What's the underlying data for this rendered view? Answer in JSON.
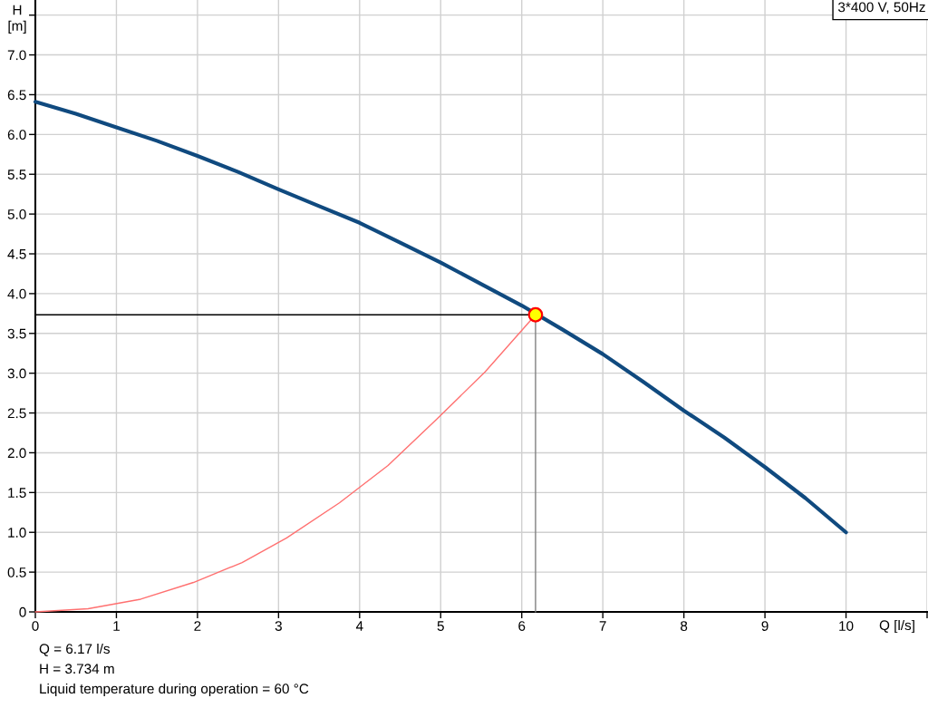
{
  "chart_data": {
    "type": "line",
    "xlabel": "Q [l/s]",
    "ylabel": "H [m]",
    "xlim": [
      0,
      11
    ],
    "ylim": [
      0,
      7.69
    ],
    "xticks": [
      0,
      1,
      2,
      3,
      4,
      5,
      6,
      7,
      8,
      9,
      10,
      {
        "value": 11,
        "label": null
      }
    ],
    "yticks": [
      0,
      0.5,
      {
        "value": 1,
        "label": "1.0"
      },
      1.5,
      {
        "value": 2,
        "label": "2.0"
      },
      2.5,
      {
        "value": 3,
        "label": "3.0"
      },
      3.5,
      {
        "value": 4,
        "label": "4.0"
      },
      4.5,
      {
        "value": 5,
        "label": "5.0"
      },
      5.5,
      {
        "value": 6,
        "label": "6.0"
      },
      6.5,
      {
        "value": 7,
        "label": "7.0"
      },
      {
        "value": 7.5,
        "label": null
      }
    ],
    "grid": true,
    "legend": false,
    "series": [
      {
        "color": "#104a7f",
        "x": [
          0,
          0.5,
          1,
          1.5,
          2,
          2.5,
          3,
          3.5,
          4,
          4.5,
          5,
          5.5,
          6,
          6.5,
          7,
          7.5,
          8,
          8.5,
          9,
          9.5,
          10
        ],
        "values": [
          6.41,
          6.26,
          6.09,
          5.92,
          5.73,
          5.53,
          5.31,
          5.1,
          4.89,
          4.64,
          4.39,
          4.12,
          3.85,
          3.55,
          3.24,
          2.89,
          2.53,
          2.19,
          1.82,
          1.43,
          1.0
        ]
      },
      {
        "color": "#ff7070",
        "x": [
          0,
          0.65,
          1.3,
          1.95,
          2.55,
          3.1,
          3.75,
          4.35,
          4.95,
          5.55,
          6.17
        ],
        "values": [
          0,
          0.04,
          0.16,
          0.37,
          0.62,
          0.93,
          1.37,
          1.84,
          2.42,
          3.02,
          3.734
        ]
      },
      {
        "color": "#000000",
        "x": [
          0,
          6.17
        ],
        "values": [
          3.734,
          3.734
        ]
      },
      {
        "color": "#808080",
        "x": [
          6.17,
          6.17
        ],
        "values": [
          3.734,
          0
        ]
      },
      {
        "type": "scatter",
        "marker": "circle",
        "color": "#ffff00",
        "x": [
          6.17
        ],
        "values": [
          3.734
        ]
      }
    ],
    "annotations": [
      "3*400 V, 50Hz",
      "Q = 6.17 l/s",
      "H = 3.734 m",
      "Liquid temperature during operation = 60 °C"
    ]
  }
}
